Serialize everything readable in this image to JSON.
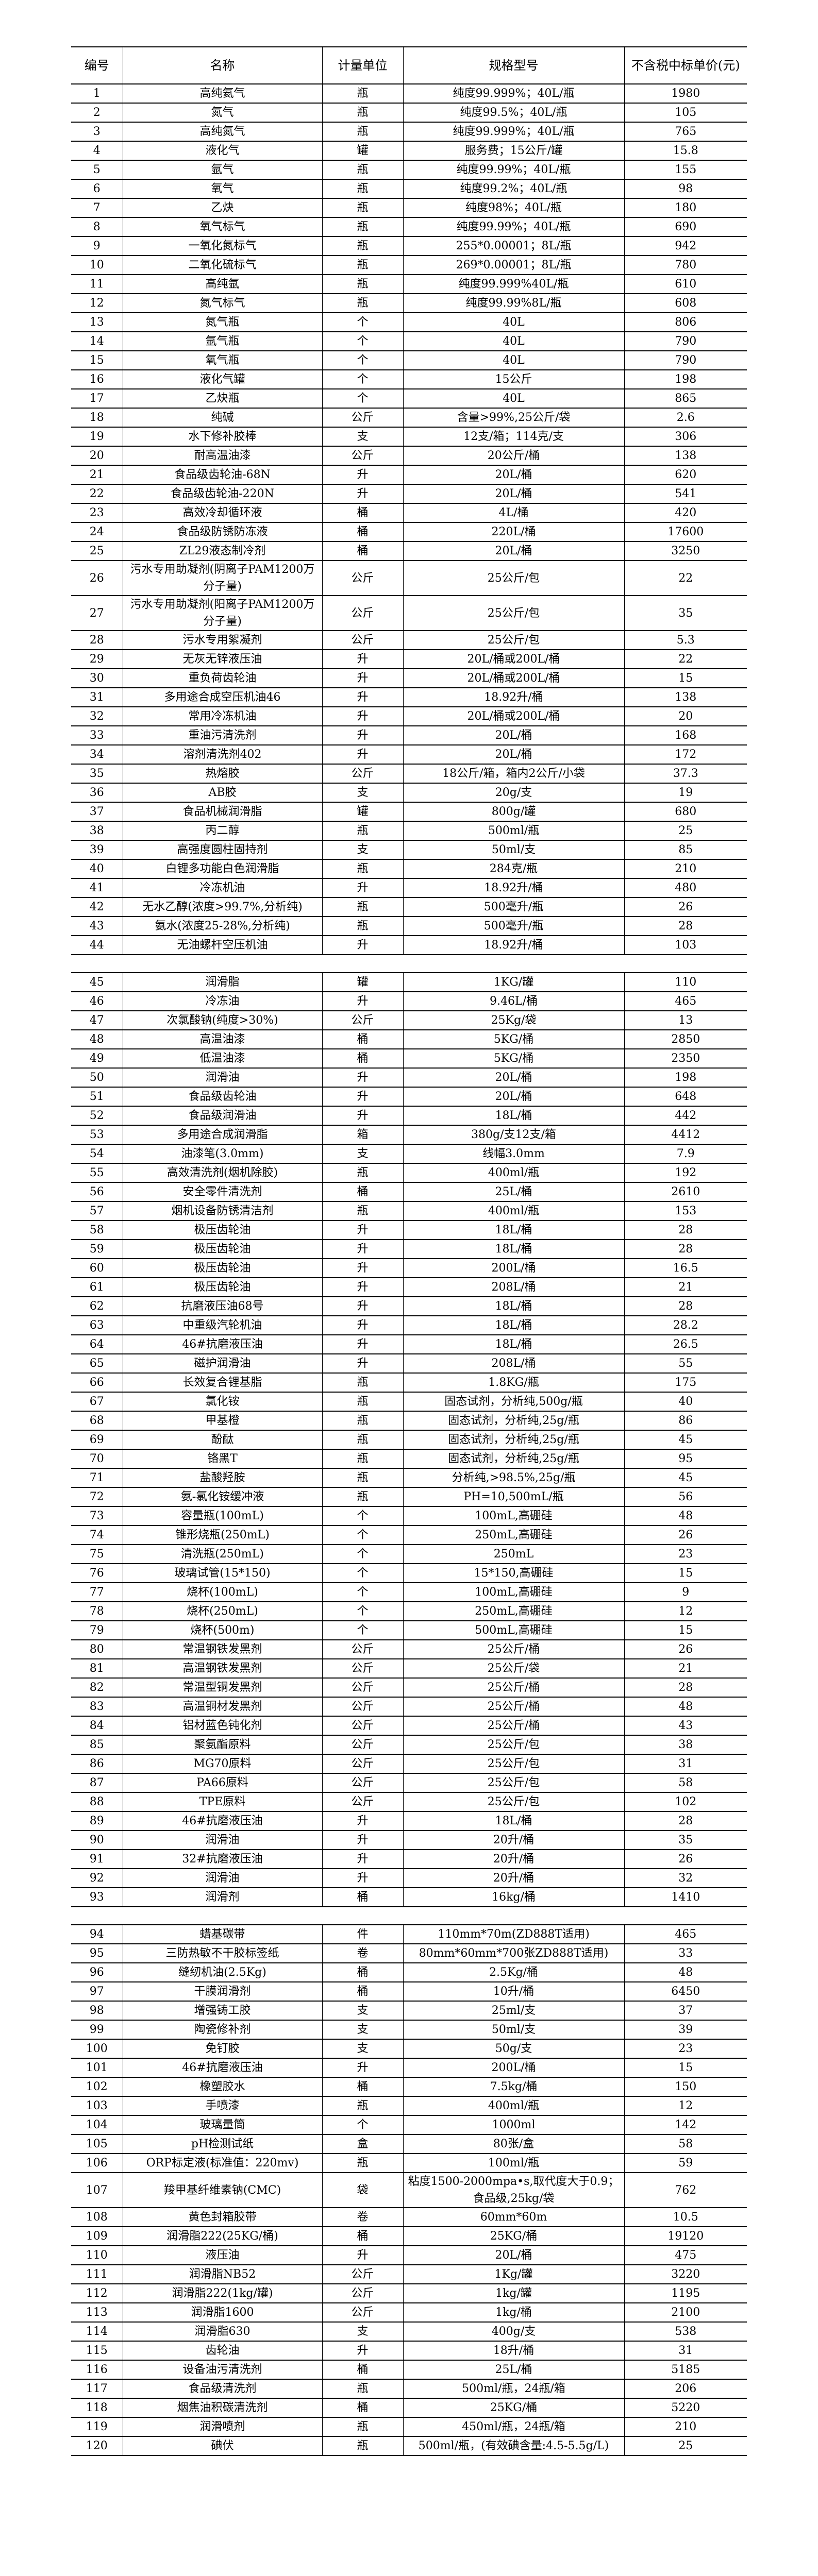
{
  "header": {
    "no": "编号",
    "name": "名称",
    "unit": "计量单位",
    "spec": "规格型号",
    "price": "不含税中标单价(元)"
  },
  "rows": [
    [
      "1",
      "高纯氦气",
      "瓶",
      "纯度99.999%；40L/瓶",
      "1980"
    ],
    [
      "2",
      "氮气",
      "瓶",
      "纯度99.5%；40L/瓶",
      "105"
    ],
    [
      "3",
      "高纯氮气",
      "瓶",
      "纯度99.999%；40L/瓶",
      "765"
    ],
    [
      "4",
      "液化气",
      "罐",
      "服务费；15公斤/罐",
      "15.8"
    ],
    [
      "5",
      "氩气",
      "瓶",
      "纯度99.99%；40L/瓶",
      "155"
    ],
    [
      "6",
      "氧气",
      "瓶",
      "纯度99.2%；40L/瓶",
      "98"
    ],
    [
      "7",
      "乙炔",
      "瓶",
      "纯度98%；40L/瓶",
      "180"
    ],
    [
      "8",
      "氧气标气",
      "瓶",
      "纯度99.99%；40L/瓶",
      "690"
    ],
    [
      "9",
      "一氧化氮标气",
      "瓶",
      "255*0.00001；8L/瓶",
      "942"
    ],
    [
      "10",
      "二氧化硫标气",
      "瓶",
      "269*0.00001；8L/瓶",
      "780"
    ],
    [
      "11",
      "高纯氩",
      "瓶",
      "纯度99.999%40L/瓶",
      "610"
    ],
    [
      "12",
      "氮气标气",
      "瓶",
      "纯度99.99%8L/瓶",
      "608"
    ],
    [
      "13",
      "氮气瓶",
      "个",
      "40L",
      "806"
    ],
    [
      "14",
      "氩气瓶",
      "个",
      "40L",
      "790"
    ],
    [
      "15",
      "氧气瓶",
      "个",
      "40L",
      "790"
    ],
    [
      "16",
      "液化气罐",
      "个",
      "15公斤",
      "198"
    ],
    [
      "17",
      "乙炔瓶",
      "个",
      "40L",
      "865"
    ],
    [
      "18",
      "纯碱",
      "公斤",
      "含量>99%,25公斤/袋",
      "2.6"
    ],
    [
      "19",
      "水下修补胶棒",
      "支",
      "12支/箱；114克/支",
      "306"
    ],
    [
      "20",
      "耐高温油漆",
      "公斤",
      "20公斤/桶",
      "138"
    ],
    [
      "21",
      "食品级齿轮油-68N",
      "升",
      "20L/桶",
      "620"
    ],
    [
      "22",
      "食品级齿轮油-220N",
      "升",
      "20L/桶",
      "541"
    ],
    [
      "23",
      "高效冷却循环液",
      "桶",
      "4L/桶",
      "420"
    ],
    [
      "24",
      "食品级防锈防冻液",
      "桶",
      "220L/桶",
      "17600"
    ],
    [
      "25",
      "ZL29液态制冷剂",
      "桶",
      "20L/桶",
      "3250"
    ],
    [
      "26",
      "污水专用助凝剂(阴离子PAM1200万分子量)",
      "公斤",
      "25公斤/包",
      "22"
    ],
    [
      "27",
      "污水专用助凝剂(阳离子PAM1200万分子量)",
      "公斤",
      "25公斤/包",
      "35"
    ],
    [
      "28",
      "污水专用絮凝剂",
      "公斤",
      "25公斤/包",
      "5.3"
    ],
    [
      "29",
      "无灰无锌液压油",
      "升",
      "20L/桶或200L/桶",
      "22"
    ],
    [
      "30",
      "重负荷齿轮油",
      "升",
      "20L/桶或200L/桶",
      "15"
    ],
    [
      "31",
      "多用途合成空压机油46",
      "升",
      "18.92升/桶",
      "138"
    ],
    [
      "32",
      "常用冷冻机油",
      "升",
      "20L/桶或200L/桶",
      "20"
    ],
    [
      "33",
      "重油污清洗剂",
      "升",
      "20L/桶",
      "168"
    ],
    [
      "34",
      "溶剂清洗剂402",
      "升",
      "20L/桶",
      "172"
    ],
    [
      "35",
      "热熔胶",
      "公斤",
      "18公斤/箱，箱内2公斤/小袋",
      "37.3"
    ],
    [
      "36",
      "AB胶",
      "支",
      "20g/支",
      "19"
    ],
    [
      "37",
      "食品机械润滑脂",
      "罐",
      "800g/罐",
      "680"
    ],
    [
      "38",
      "丙二醇",
      "瓶",
      "500ml/瓶",
      "25"
    ],
    [
      "39",
      "高强度圆柱固持剂",
      "支",
      "50ml/支",
      "85"
    ],
    [
      "40",
      "白锂多功能白色润滑脂",
      "瓶",
      "284克/瓶",
      "210"
    ],
    [
      "41",
      "冷冻机油",
      "升",
      "18.92升/桶",
      "480"
    ],
    [
      "42",
      "无水乙醇(浓度>99.7%,分析纯)",
      "瓶",
      "500毫升/瓶",
      "26"
    ],
    [
      "43",
      "氨水(浓度25-28%,分析纯)",
      "瓶",
      "500毫升/瓶",
      "28"
    ],
    [
      "44",
      "无油螺杆空压机油",
      "升",
      "18.92升/桶",
      "103"
    ],
    [
      "45",
      "润滑脂",
      "罐",
      "1KG/罐",
      "110"
    ],
    [
      "46",
      "冷冻油",
      "升",
      "9.46L/桶",
      "465"
    ],
    [
      "47",
      "次氯酸钠(纯度>30%)",
      "公斤",
      "25Kg/袋",
      "13"
    ],
    [
      "48",
      "高温油漆",
      "桶",
      "5KG/桶",
      "2850"
    ],
    [
      "49",
      "低温油漆",
      "桶",
      "5KG/桶",
      "2350"
    ],
    [
      "50",
      "润滑油",
      "升",
      "20L/桶",
      "198"
    ],
    [
      "51",
      "食品级齿轮油",
      "升",
      "20L/桶",
      "648"
    ],
    [
      "52",
      "食品级润滑油",
      "升",
      "18L/桶",
      "442"
    ],
    [
      "53",
      "多用途合成润滑脂",
      "箱",
      "380g/支12支/箱",
      "4412"
    ],
    [
      "54",
      "油漆笔(3.0mm)",
      "支",
      "线幅3.0mm",
      "7.9"
    ],
    [
      "55",
      "高效清洗剂(烟机除胶)",
      "瓶",
      "400ml/瓶",
      "192"
    ],
    [
      "56",
      "安全零件清洗剂",
      "桶",
      "25L/桶",
      "2610"
    ],
    [
      "57",
      "烟机设备防锈清洁剂",
      "瓶",
      "400ml/瓶",
      "153"
    ],
    [
      "58",
      "极压齿轮油",
      "升",
      "18L/桶",
      "28"
    ],
    [
      "59",
      "极压齿轮油",
      "升",
      "18L/桶",
      "28"
    ],
    [
      "60",
      "极压齿轮油",
      "升",
      "200L/桶",
      "16.5"
    ],
    [
      "61",
      "极压齿轮油",
      "升",
      "208L/桶",
      "21"
    ],
    [
      "62",
      "抗磨液压油68号",
      "升",
      "18L/桶",
      "28"
    ],
    [
      "63",
      "中重级汽轮机油",
      "升",
      "18L/桶",
      "28.2"
    ],
    [
      "64",
      "46#抗磨液压油",
      "升",
      "18L/桶",
      "26.5"
    ],
    [
      "65",
      "磁护润滑油",
      "升",
      "208L/桶",
      "55"
    ],
    [
      "66",
      "长效复合锂基脂",
      "瓶",
      "1.8KG/瓶",
      "175"
    ],
    [
      "67",
      "氯化铵",
      "瓶",
      "固态试剂，分析纯,500g/瓶",
      "40"
    ],
    [
      "68",
      "甲基橙",
      "瓶",
      "固态试剂，分析纯,25g/瓶",
      "86"
    ],
    [
      "69",
      "酚酞",
      "瓶",
      "固态试剂，分析纯,25g/瓶",
      "45"
    ],
    [
      "70",
      "铬黑T",
      "瓶",
      "固态试剂，分析纯,25g/瓶",
      "95"
    ],
    [
      "71",
      "盐酸羟胺",
      "瓶",
      "分析纯,>98.5%,25g/瓶",
      "45"
    ],
    [
      "72",
      "氨-氯化铵缓冲液",
      "瓶",
      "PH=10,500mL/瓶",
      "56"
    ],
    [
      "73",
      "容量瓶(100mL)",
      "个",
      "100mL,高硼硅",
      "48"
    ],
    [
      "74",
      "锥形烧瓶(250mL)",
      "个",
      "250mL,高硼硅",
      "26"
    ],
    [
      "75",
      "清洗瓶(250mL)",
      "个",
      "250mL",
      "23"
    ],
    [
      "76",
      "玻璃试管(15*150)",
      "个",
      "15*150,高硼硅",
      "15"
    ],
    [
      "77",
      "烧杯(100mL)",
      "个",
      "100mL,高硼硅",
      "9"
    ],
    [
      "78",
      "烧杯(250mL)",
      "个",
      "250mL,高硼硅",
      "12"
    ],
    [
      "79",
      "烧杯(500m)",
      "个",
      "500mL,高硼硅",
      "15"
    ],
    [
      "80",
      "常温钢铁发黑剂",
      "公斤",
      "25公斤/桶",
      "26"
    ],
    [
      "81",
      "高温钢铁发黑剂",
      "公斤",
      "25公斤/袋",
      "21"
    ],
    [
      "82",
      "常温型铜发黑剂",
      "公斤",
      "25公斤/桶",
      "28"
    ],
    [
      "83",
      "高温铜材发黑剂",
      "公斤",
      "25公斤/桶",
      "48"
    ],
    [
      "84",
      "铝材蓝色钝化剂",
      "公斤",
      "25公斤/桶",
      "43"
    ],
    [
      "85",
      "聚氨酯原料",
      "公斤",
      "25公斤/包",
      "38"
    ],
    [
      "86",
      "MG70原料",
      "公斤",
      "25公斤/包",
      "31"
    ],
    [
      "87",
      "PA66原料",
      "公斤",
      "25公斤/包",
      "58"
    ],
    [
      "88",
      "TPE原料",
      "公斤",
      "25公斤/包",
      "102"
    ],
    [
      "89",
      "46#抗磨液压油",
      "升",
      "18L/桶",
      "28"
    ],
    [
      "90",
      "润滑油",
      "升",
      "20升/桶",
      "35"
    ],
    [
      "91",
      "32#抗磨液压油",
      "升",
      "20升/桶",
      "26"
    ],
    [
      "92",
      "润滑油",
      "升",
      "20升/桶",
      "32"
    ],
    [
      "93",
      "润滑剂",
      "桶",
      "16kg/桶",
      "1410"
    ],
    [
      "94",
      "蜡基碳带",
      "件",
      "110mm*70m(ZD888T适用)",
      "465"
    ],
    [
      "95",
      "三防热敏不干胶标签纸",
      "卷",
      "80mm*60mm*700张ZD888T适用)",
      "33"
    ],
    [
      "96",
      "缝纫机油(2.5Kg)",
      "桶",
      "2.5Kg/桶",
      "48"
    ],
    [
      "97",
      "干膜润滑剂",
      "桶",
      "10升/桶",
      "6450"
    ],
    [
      "98",
      "增强铸工胶",
      "支",
      "25ml/支",
      "37"
    ],
    [
      "99",
      "陶瓷修补剂",
      "支",
      "50ml/支",
      "39"
    ],
    [
      "100",
      "免钉胶",
      "支",
      "50g/支",
      "23"
    ],
    [
      "101",
      "46#抗磨液压油",
      "升",
      "200L/桶",
      "15"
    ],
    [
      "102",
      "橡塑胶水",
      "桶",
      "7.5kg/桶",
      "150"
    ],
    [
      "103",
      "手喷漆",
      "瓶",
      "400ml/瓶",
      "12"
    ],
    [
      "104",
      "玻璃量筒",
      "个",
      "1000ml",
      "142"
    ],
    [
      "105",
      "pH检测试纸",
      "盒",
      "80张/盒",
      "58"
    ],
    [
      "106",
      "ORP标定液(标准值：220mv)",
      "瓶",
      "100ml/瓶",
      "59"
    ],
    [
      "107",
      "羧甲基纤维素钠(CMC)",
      "袋",
      "粘度1500-2000mpa•s,取代度大于0.9；食品级,25kg/袋",
      "762"
    ],
    [
      "108",
      "黄色封箱胶带",
      "卷",
      "60mm*60m",
      "10.5"
    ],
    [
      "109",
      "润滑脂222(25KG/桶)",
      "桶",
      "25KG/桶",
      "19120"
    ],
    [
      "110",
      "液压油",
      "升",
      "20L/桶",
      "475"
    ],
    [
      "111",
      "润滑脂NB52",
      "公斤",
      "1Kg/罐",
      "3220"
    ],
    [
      "112",
      "润滑脂222(1kg/罐)",
      "公斤",
      "1kg/罐",
      "1195"
    ],
    [
      "113",
      "润滑脂1600",
      "公斤",
      "1kg/桶",
      "2100"
    ],
    [
      "114",
      "润滑脂630",
      "支",
      "400g/支",
      "538"
    ],
    [
      "115",
      "齿轮油",
      "升",
      "18升/桶",
      "31"
    ],
    [
      "116",
      "设备油污清洗剂",
      "桶",
      "25L/桶",
      "5185"
    ],
    [
      "117",
      "食品级清洗剂",
      "瓶",
      "500ml/瓶，24瓶/箱",
      "206"
    ],
    [
      "118",
      "烟焦油积碳清洗剂",
      "桶",
      "25KG/桶",
      "5220"
    ],
    [
      "119",
      "润滑喷剂",
      "瓶",
      "450ml/瓶，24瓶/箱",
      "210"
    ],
    [
      "120",
      "碘伏",
      "瓶",
      "500ml/瓶，(有效碘含量:4.5-5.5g/L)",
      "25"
    ]
  ]
}
